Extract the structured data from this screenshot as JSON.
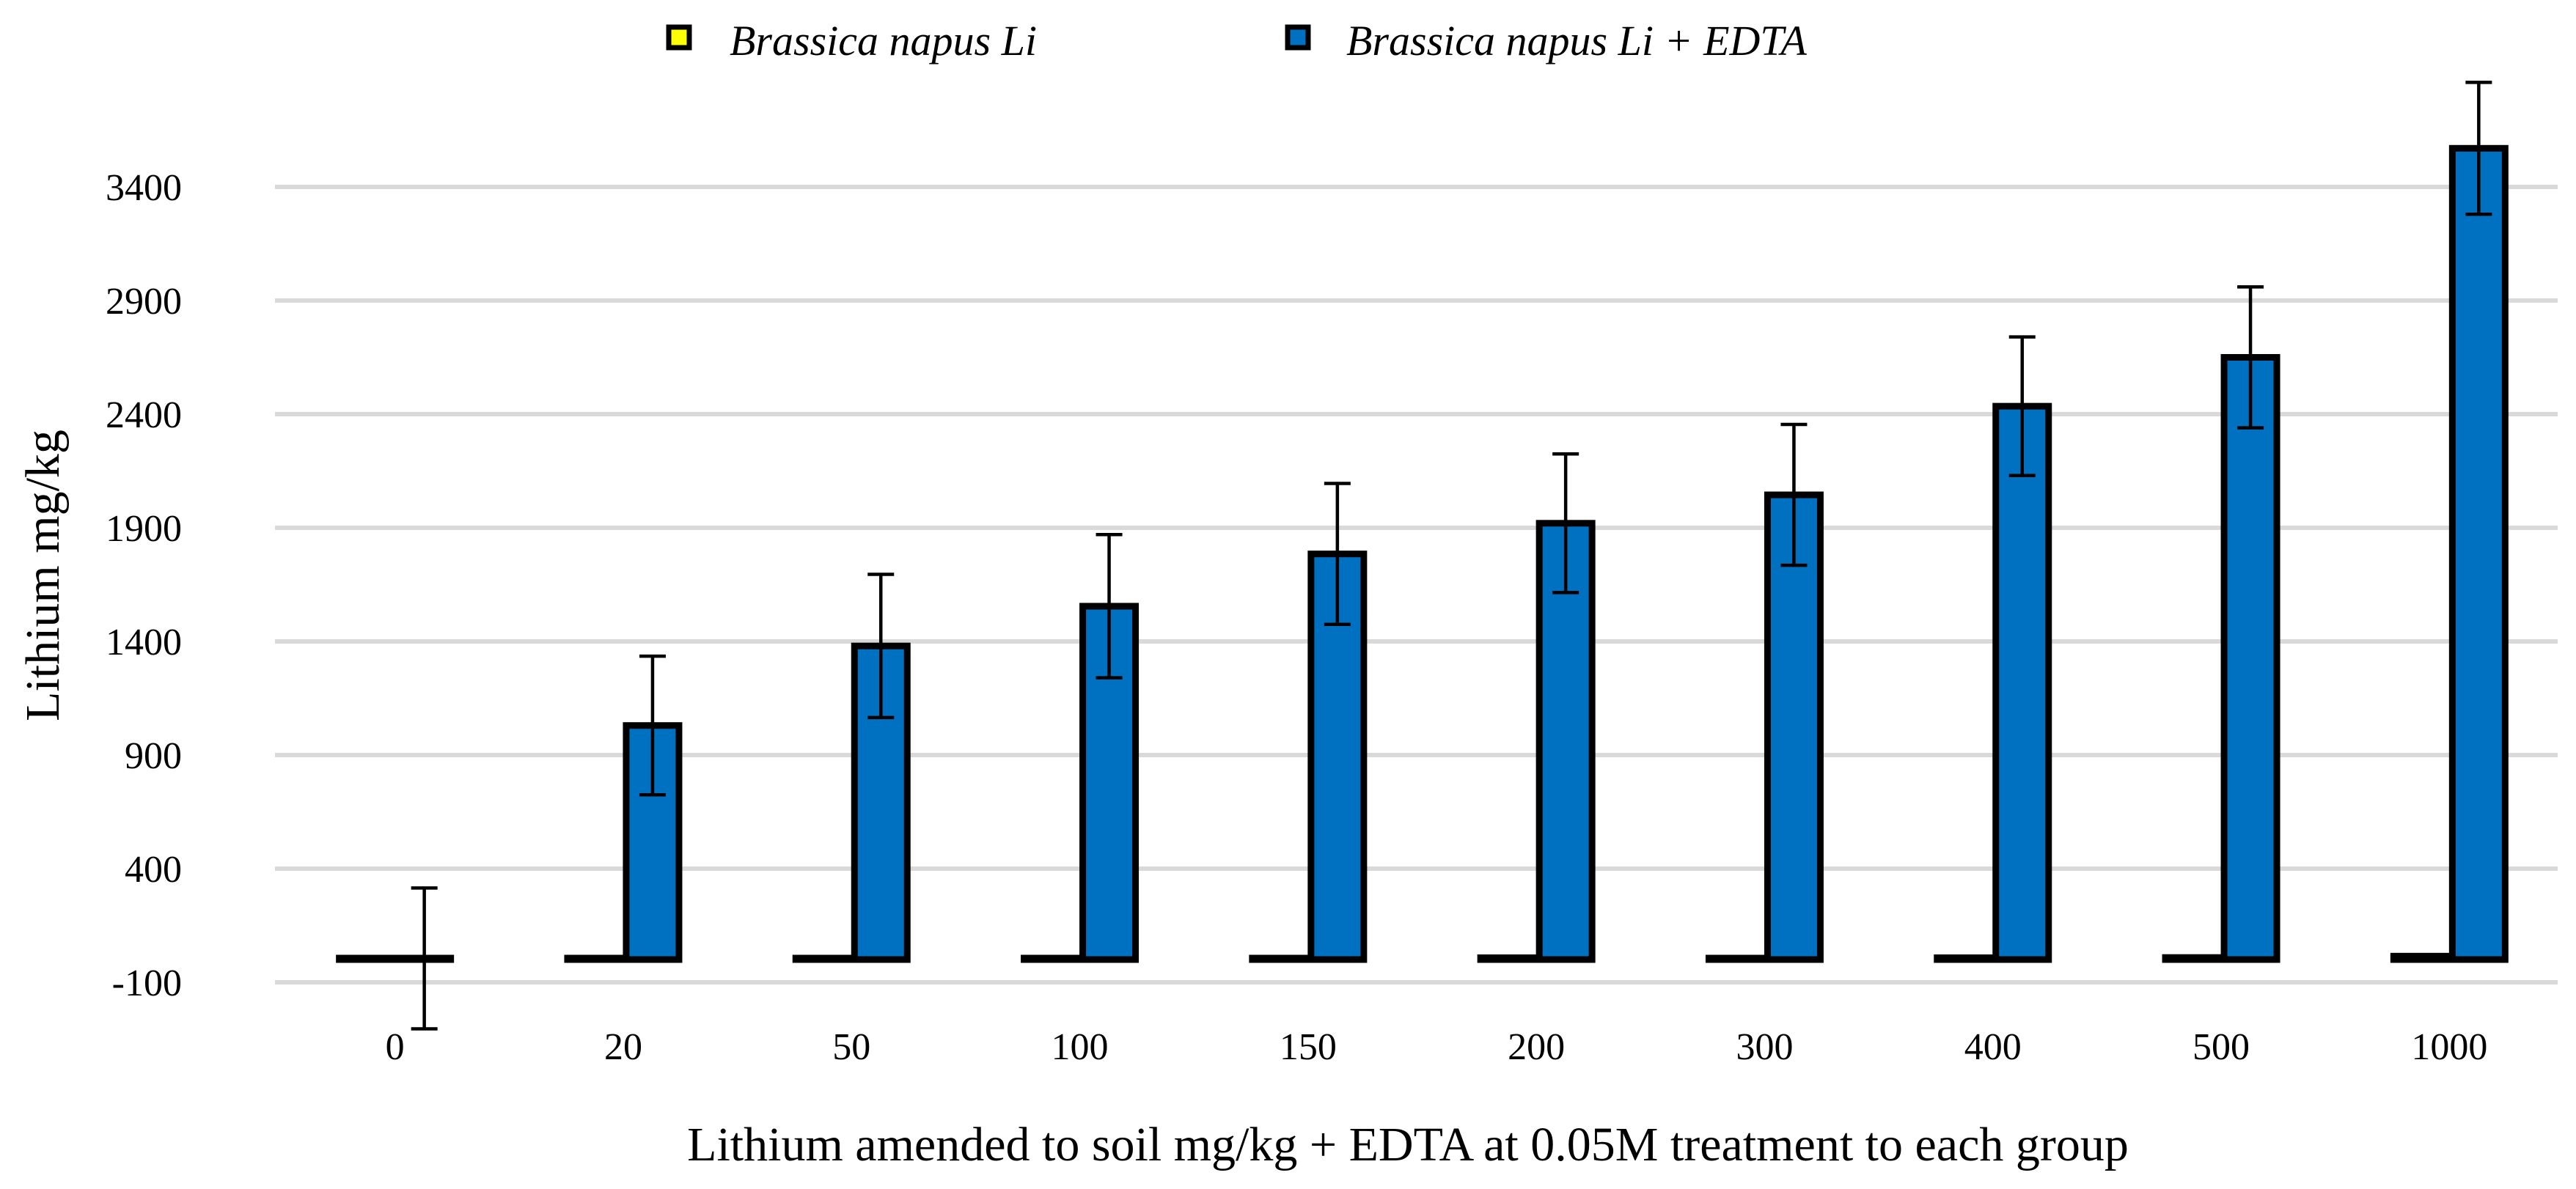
{
  "chart_data": {
    "type": "bar",
    "title": "",
    "xlabel": "Lithium amended to soil mg/kg + EDTA at 0.05M treatment to each group",
    "ylabel": "Lithium mg/kg",
    "ylim": [
      -100,
      3600
    ],
    "yticks": [
      -100,
      400,
      900,
      1400,
      1900,
      2400,
      2900,
      3400
    ],
    "grid": true,
    "legend_position": "top-center",
    "categories": [
      "0",
      "20",
      "50",
      "100",
      "150",
      "200",
      "300",
      "400",
      "500",
      "1000"
    ],
    "series": [
      {
        "name": "Brassica napus Li",
        "color": "#FFFF00",
        "values": [
          2,
          3,
          3,
          5,
          6,
          8,
          3,
          8,
          9,
          15
        ],
        "errors": [
          0,
          0,
          0,
          0,
          0,
          0,
          0,
          0,
          0,
          0
        ]
      },
      {
        "name": "Brassica napus Li + EDTA",
        "color": "#0070C0",
        "values": [
          5,
          1030,
          1380,
          1555,
          1785,
          1920,
          2045,
          2435,
          2650,
          3570
        ],
        "errors": [
          310,
          305,
          315,
          315,
          310,
          305,
          310,
          305,
          310,
          290
        ]
      }
    ]
  }
}
